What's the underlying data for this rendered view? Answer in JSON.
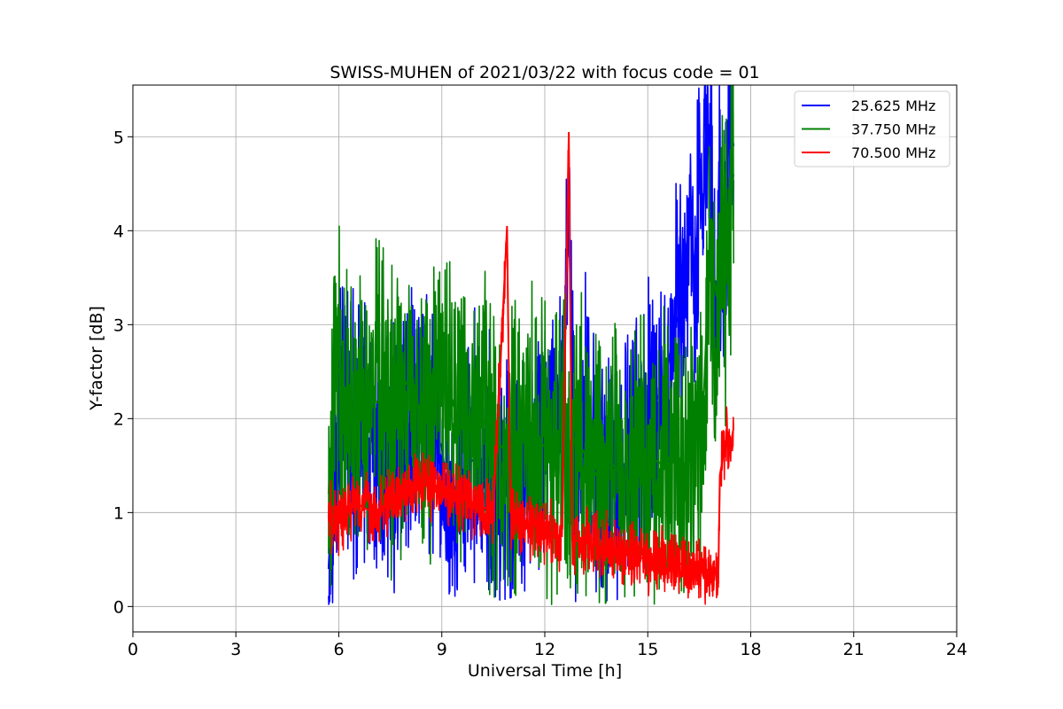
{
  "chart_data": {
    "type": "line",
    "title": "SWISS-MUHEN of 2021/03/22 with focus code = 01",
    "xlabel": "Universal Time [h]",
    "ylabel": "Y-factor [dB]",
    "xlim": [
      0,
      24
    ],
    "ylim": [
      -0.27,
      5.55
    ],
    "xticks": [
      "0",
      "3",
      "6",
      "9",
      "12",
      "15",
      "18",
      "21",
      "24"
    ],
    "yticks": [
      "0",
      "1",
      "2",
      "3",
      "4",
      "5"
    ],
    "grid": true,
    "legend": "top-right",
    "series": [
      {
        "name": "25.625 MHz",
        "color": "#0000ff",
        "x": [
          5.7,
          5.9,
          6.2,
          6.5,
          7.0,
          7.5,
          8.0,
          8.5,
          9.0,
          9.3,
          9.5,
          10.0,
          10.5,
          11.0,
          11.5,
          12.0,
          12.5,
          12.7,
          12.9,
          13.2,
          13.5,
          14.0,
          14.5,
          15.0,
          15.5,
          15.8,
          16.0,
          16.2,
          16.4,
          16.5,
          16.6,
          16.7,
          16.8,
          16.9,
          17.0,
          17.1,
          17.2,
          17.3,
          17.4,
          17.5
        ],
        "y": [
          0.4,
          1.9,
          2.2,
          1.6,
          1.8,
          1.5,
          1.9,
          2.1,
          1.7,
          0.8,
          1.4,
          1.6,
          1.3,
          1.2,
          1.5,
          1.7,
          2.2,
          4.1,
          1.0,
          2.3,
          1.4,
          1.2,
          1.6,
          2.0,
          2.4,
          3.0,
          3.2,
          4.2,
          3.5,
          4.8,
          4.0,
          5.2,
          4.7,
          3.9,
          3.0,
          4.3,
          3.4,
          4.6,
          5.2,
          4.9
        ]
      },
      {
        "name": "37.750 MHz",
        "color": "#008000",
        "x": [
          5.7,
          5.9,
          6.2,
          6.5,
          7.0,
          7.5,
          8.0,
          8.5,
          9.0,
          9.3,
          9.5,
          10.0,
          10.5,
          11.0,
          11.5,
          12.0,
          12.5,
          12.7,
          12.9,
          13.2,
          13.5,
          14.0,
          14.5,
          15.0,
          15.5,
          15.8,
          16.0,
          16.2,
          16.4,
          16.6,
          16.8,
          17.0,
          17.1,
          17.2,
          17.3,
          17.4,
          17.5
        ],
        "y": [
          1.2,
          2.6,
          2.3,
          2.0,
          2.2,
          2.1,
          2.4,
          2.0,
          2.5,
          2.2,
          1.9,
          2.1,
          1.8,
          1.6,
          1.9,
          1.7,
          1.9,
          1.5,
          1.8,
          1.6,
          1.4,
          1.5,
          1.3,
          1.6,
          1.5,
          1.7,
          1.4,
          1.6,
          1.8,
          1.9,
          3.9,
          3.3,
          3.7,
          4.1,
          3.5,
          4.4,
          4.6
        ]
      },
      {
        "name": "70.500 MHz",
        "color": "#ff0000",
        "x": [
          5.7,
          6.0,
          6.5,
          7.0,
          7.5,
          8.0,
          8.5,
          9.0,
          9.5,
          10.0,
          10.5,
          10.9,
          11.0,
          11.5,
          12.0,
          12.5,
          12.7,
          12.8,
          13.0,
          13.5,
          14.0,
          14.5,
          15.0,
          15.5,
          16.0,
          16.5,
          17.0,
          17.05,
          17.1,
          17.2,
          17.3,
          17.4,
          17.5
        ],
        "y": [
          1.0,
          0.9,
          1.1,
          1.0,
          1.1,
          1.2,
          1.3,
          1.2,
          1.15,
          1.1,
          1.0,
          4.05,
          1.0,
          0.9,
          0.8,
          0.75,
          5.05,
          0.7,
          0.7,
          0.65,
          0.6,
          0.55,
          0.5,
          0.5,
          0.45,
          0.4,
          0.35,
          0.2,
          1.4,
          1.6,
          1.8,
          1.7,
          1.9
        ]
      }
    ]
  }
}
